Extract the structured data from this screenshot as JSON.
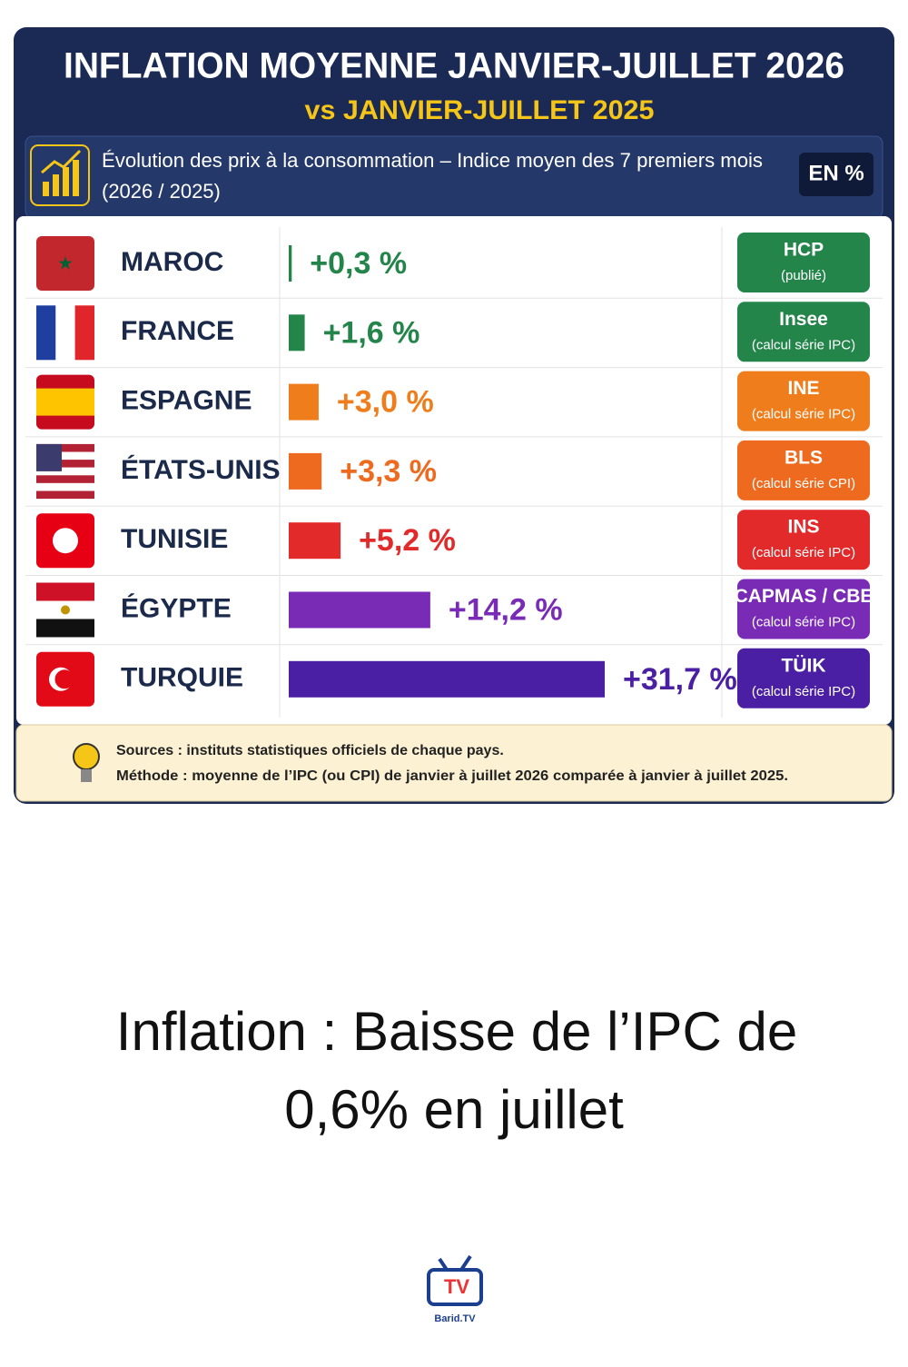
{
  "chart_data": {
    "type": "bar",
    "orientation": "horizontal",
    "title": "INFLATION MOYENNE JANVIER-JUILLET 2026",
    "subtitle": "vs JANVIER-JUILLET 2025",
    "description": "Évolution des prix à la consommation – Indice moyen des 7 premiers mois",
    "period": "(2026 / 2025)",
    "unit": "EN %",
    "categories": [
      "MAROC",
      "FRANCE",
      "ESPAGNE",
      "ÉTATS-UNIS",
      "TUNISIE",
      "ÉGYPTE",
      "TURQUIE"
    ],
    "values": [
      0.3,
      1.6,
      3.0,
      3.3,
      5.2,
      14.2,
      31.7
    ],
    "value_labels": [
      "+0,3 %",
      "+1,6 %",
      "+3,0 %",
      "+3,3 %",
      "+5,2 %",
      "+14,2 %",
      "+31,7 %"
    ],
    "colors": [
      "#23854a",
      "#23854a",
      "#f07d1c",
      "#ee6a1e",
      "#e32a2a",
      "#7a2bb6",
      "#4b1fa3"
    ],
    "sources": [
      {
        "name": "HCP",
        "note": "(publié)"
      },
      {
        "name": "Insee",
        "note": "(calcul série IPC)"
      },
      {
        "name": "INE",
        "note": "(calcul série IPC)"
      },
      {
        "name": "BLS",
        "note": "(calcul série CPI)"
      },
      {
        "name": "INS",
        "note": "(calcul série IPC)"
      },
      {
        "name": "CAPMAS / CBE",
        "note": "(calcul série IPC)"
      },
      {
        "name": "TÜIK",
        "note": "(calcul série IPC)"
      }
    ],
    "notes": [
      "Sources : instituts statistiques officiels de chaque pays.",
      "Méthode : moyenne de l’IPC (ou CPI) de janvier à juillet 2026 comparée à janvier à juillet 2025."
    ]
  },
  "caption": [
    "Inflation : Baisse de l’IPC de",
    "0,6% en juillet"
  ],
  "logo": {
    "mark": "TV",
    "name": "Barid.TV"
  }
}
